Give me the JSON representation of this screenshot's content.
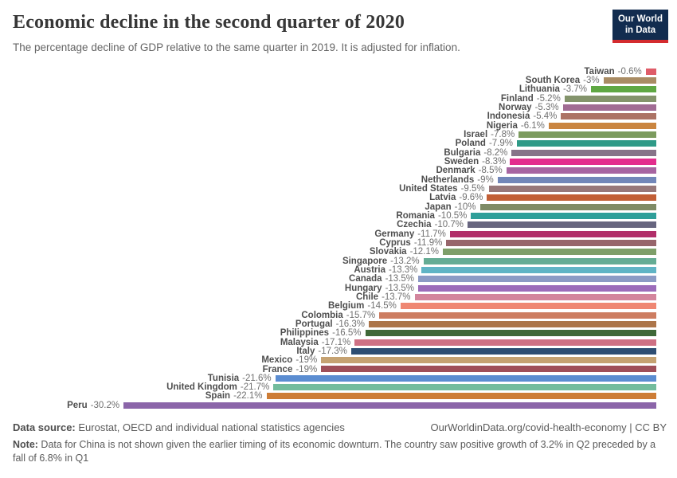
{
  "header": {
    "title": "Economic decline in the second quarter of 2020",
    "subtitle": "The percentage decline of GDP relative to the same quarter in 2019. It is adjusted for inflation.",
    "logo": {
      "line1": "Our World",
      "line2": "in Data",
      "bg_color": "#122c4f",
      "accent_color": "#d42b2f"
    }
  },
  "chart_data": {
    "type": "bar",
    "orientation": "horizontal",
    "title": "Economic decline in the second quarter of 2020",
    "value_unit": "%",
    "xlim": [
      -30.2,
      0
    ],
    "grid": false,
    "legend": "none",
    "bars": [
      {
        "entity": "Taiwan",
        "value": 0.6,
        "label": "-0.6%",
        "color": "#df5c68"
      },
      {
        "entity": "South Korea",
        "value": 3.0,
        "label": "-3%",
        "color": "#a98c64"
      },
      {
        "entity": "Lithuania",
        "value": 3.7,
        "label": "-3.7%",
        "color": "#5fa843"
      },
      {
        "entity": "Finland",
        "value": 5.2,
        "label": "-5.2%",
        "color": "#84946c"
      },
      {
        "entity": "Norway",
        "value": 5.3,
        "label": "-5.3%",
        "color": "#a16c94"
      },
      {
        "entity": "Indonesia",
        "value": 5.4,
        "label": "-5.4%",
        "color": "#ac7365"
      },
      {
        "entity": "Nigeria",
        "value": 6.1,
        "label": "-6.1%",
        "color": "#ca8540"
      },
      {
        "entity": "Israel",
        "value": 7.8,
        "label": "-7.8%",
        "color": "#7c9b5e"
      },
      {
        "entity": "Poland",
        "value": 7.9,
        "label": "-7.9%",
        "color": "#2f9a87"
      },
      {
        "entity": "Bulgaria",
        "value": 8.2,
        "label": "-8.2%",
        "color": "#877489"
      },
      {
        "entity": "Sweden",
        "value": 8.3,
        "label": "-8.3%",
        "color": "#e32d8d"
      },
      {
        "entity": "Denmark",
        "value": 8.5,
        "label": "-8.5%",
        "color": "#a765a1"
      },
      {
        "entity": "Netherlands",
        "value": 9.0,
        "label": "-9%",
        "color": "#7287b9"
      },
      {
        "entity": "United States",
        "value": 9.5,
        "label": "-9.5%",
        "color": "#97787a"
      },
      {
        "entity": "Latvia",
        "value": 9.6,
        "label": "-9.6%",
        "color": "#c25f36"
      },
      {
        "entity": "Japan",
        "value": 10.0,
        "label": "-10%",
        "color": "#7f8b66"
      },
      {
        "entity": "Romania",
        "value": 10.5,
        "label": "-10.5%",
        "color": "#2f9f99"
      },
      {
        "entity": "Czechia",
        "value": 10.7,
        "label": "-10.7%",
        "color": "#67657f"
      },
      {
        "entity": "Germany",
        "value": 11.7,
        "label": "-11.7%",
        "color": "#b12e69"
      },
      {
        "entity": "Cyprus",
        "value": 11.9,
        "label": "-11.9%",
        "color": "#97656b"
      },
      {
        "entity": "Slovakia",
        "value": 12.1,
        "label": "-12.1%",
        "color": "#7e9f69"
      },
      {
        "entity": "Singapore",
        "value": 13.2,
        "label": "-13.2%",
        "color": "#64ac94"
      },
      {
        "entity": "Austria",
        "value": 13.3,
        "label": "-13.3%",
        "color": "#60b4c5"
      },
      {
        "entity": "Canada",
        "value": 13.5,
        "label": "-13.5%",
        "color": "#8c9bc5"
      },
      {
        "entity": "Hungary",
        "value": 13.5,
        "label": "-13.5%",
        "color": "#9c6cba"
      },
      {
        "entity": "Chile",
        "value": 13.7,
        "label": "-13.7%",
        "color": "#d3859d"
      },
      {
        "entity": "Belgium",
        "value": 14.5,
        "label": "-14.5%",
        "color": "#ef8773"
      },
      {
        "entity": "Colombia",
        "value": 15.7,
        "label": "-15.7%",
        "color": "#cd7d61"
      },
      {
        "entity": "Portugal",
        "value": 16.3,
        "label": "-16.3%",
        "color": "#ac7549"
      },
      {
        "entity": "Philippines",
        "value": 16.5,
        "label": "-16.5%",
        "color": "#3f6938"
      },
      {
        "entity": "Malaysia",
        "value": 17.1,
        "label": "-17.1%",
        "color": "#ce7184"
      },
      {
        "entity": "Italy",
        "value": 17.3,
        "label": "-17.3%",
        "color": "#2d4e73"
      },
      {
        "entity": "Mexico",
        "value": 19.0,
        "label": "-19%",
        "color": "#c5a272"
      },
      {
        "entity": "France",
        "value": 19.0,
        "label": "-19%",
        "color": "#9f4f59"
      },
      {
        "entity": "Tunisia",
        "value": 21.6,
        "label": "-21.6%",
        "color": "#5b8dd1"
      },
      {
        "entity": "United Kingdom",
        "value": 21.7,
        "label": "-21.7%",
        "color": "#73bc9d"
      },
      {
        "entity": "Spain",
        "value": 22.1,
        "label": "-22.1%",
        "color": "#cd7d36"
      },
      {
        "entity": "Peru",
        "value": 30.2,
        "label": "-30.2%",
        "color": "#8b65a9"
      }
    ]
  },
  "footer": {
    "source_label": "Data source:",
    "source_text": " Eurostat, OECD and individual national statistics agencies",
    "link_text": "OurWorldinData.org/covid-health-economy | CC BY",
    "note_label": "Note:",
    "note_text": " Data for China is not shown given the earlier timing of its economic downturn. The country saw positive growth of 3.2% in Q2 preceded by a fall of 6.8% in Q1"
  }
}
